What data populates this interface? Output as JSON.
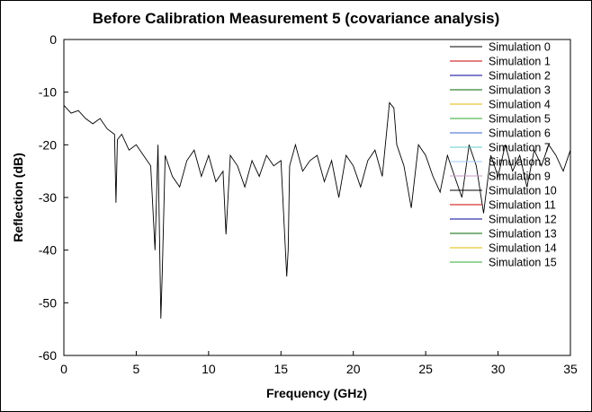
{
  "chart_data": {
    "type": "line",
    "title": "Before Calibration Measurement 5 (covariance analysis)",
    "xlabel": "Frequency (GHz)",
    "ylabel": "Reflection (dB)",
    "xlim": [
      0,
      35
    ],
    "ylim": [
      -60,
      0
    ],
    "xticks": [
      "0",
      "5",
      "10",
      "15",
      "20",
      "25",
      "30",
      "35"
    ],
    "yticks": [
      "0",
      "-10",
      "-20",
      "-30",
      "-40",
      "-50",
      "-60"
    ],
    "grid": false,
    "legend_position": "top-right",
    "series": [
      {
        "name": "Simulation 0",
        "color": "#000000",
        "x": [
          0,
          0.5,
          1,
          1.5,
          2,
          2.5,
          3,
          3.5,
          3.6,
          3.7,
          4,
          4.5,
          5,
          5.5,
          6,
          6.3,
          6.5,
          6.7,
          6.8,
          7,
          7.5,
          8,
          8.5,
          9,
          9.5,
          10,
          10.5,
          11,
          11.2,
          11.5,
          12,
          12.5,
          13,
          13.5,
          14,
          14.5,
          15,
          15.4,
          15.5,
          15.6,
          16,
          16.5,
          17,
          17.5,
          18,
          18.5,
          19,
          19.5,
          20,
          20.5,
          21,
          21.5,
          22,
          22.5,
          22.8,
          23,
          23.5,
          24,
          24.5,
          25,
          25.5,
          26,
          26.5,
          27,
          27.5,
          28,
          28.5,
          29,
          29.5,
          30,
          30.5,
          31,
          31.5,
          32,
          32.5,
          33,
          33.5,
          34,
          34.5,
          35
        ],
        "y": [
          -12.5,
          -14,
          -13.5,
          -15,
          -16,
          -15,
          -17,
          -18,
          -31,
          -19,
          -18,
          -21,
          -20,
          -22,
          -24,
          -40,
          -20,
          -53,
          -44,
          -22,
          -26,
          -28,
          -23,
          -21,
          -26,
          -22,
          -27,
          -25,
          -37,
          -22,
          -24,
          -28,
          -23,
          -26,
          -22,
          -24,
          -23,
          -45,
          -40,
          -24,
          -20,
          -25,
          -23,
          -22,
          -27,
          -23,
          -30,
          -22,
          -24,
          -28,
          -23,
          -21,
          -26,
          -12,
          -13,
          -20,
          -24,
          -32,
          -20,
          -22,
          -26,
          -29,
          -22,
          -26,
          -30,
          -20,
          -24,
          -33,
          -22,
          -26,
          -20,
          -25,
          -22,
          -28,
          -21,
          -24,
          -20,
          -22,
          -25,
          -21
        ]
      },
      {
        "name": "Simulation 1",
        "color": "#cc0000"
      },
      {
        "name": "Simulation 2",
        "color": "#000099"
      },
      {
        "name": "Simulation 3",
        "color": "#006600"
      },
      {
        "name": "Simulation 4",
        "color": "#e6b800"
      },
      {
        "name": "Simulation 5",
        "color": "#33aa33"
      },
      {
        "name": "Simulation 6",
        "color": "#3366cc"
      },
      {
        "name": "Simulation 7",
        "color": "#66cccc"
      },
      {
        "name": "Simulation 8",
        "color": "#99ccff"
      },
      {
        "name": "Simulation 9",
        "color": "#cc99cc"
      },
      {
        "name": "Simulation 10",
        "color": "#000000"
      },
      {
        "name": "Simulation 11",
        "color": "#cc0000"
      },
      {
        "name": "Simulation 12",
        "color": "#000099"
      },
      {
        "name": "Simulation 13",
        "color": "#006600"
      },
      {
        "name": "Simulation 14",
        "color": "#e6b800"
      },
      {
        "name": "Simulation 15",
        "color": "#33aa33"
      }
    ]
  }
}
